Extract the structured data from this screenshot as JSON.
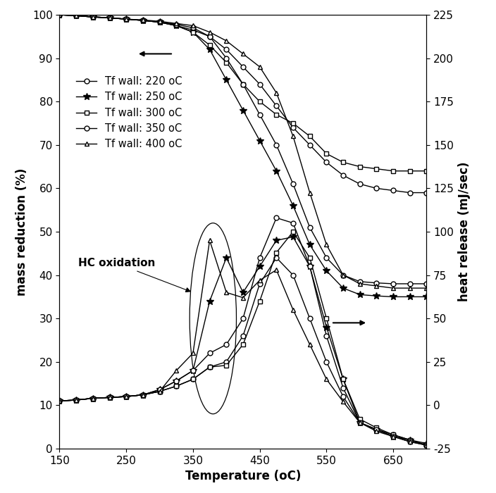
{
  "chart_data": {
    "type": "line",
    "x_label": "Temperature (oC)",
    "y_label": "mass reduction (%)",
    "y2_label": "heat release (mJ/sec)",
    "annotations": [
      "HC oxidation"
    ],
    "x": [
      150,
      175,
      200,
      225,
      250,
      275,
      300,
      325,
      350,
      375,
      400,
      425,
      450,
      475,
      500,
      525,
      550,
      575,
      600,
      625,
      650,
      675,
      700
    ],
    "xlim": [
      150,
      700
    ],
    "xticks": [
      150,
      250,
      350,
      450,
      550,
      650
    ],
    "ylim": [
      0,
      100
    ],
    "yticks": [
      0,
      10,
      20,
      30,
      40,
      50,
      60,
      70,
      80,
      90,
      100
    ],
    "y2lim": [
      -25,
      225
    ],
    "y2ticks": [
      -25,
      0,
      25,
      50,
      75,
      100,
      125,
      150,
      175,
      200,
      225
    ],
    "legend": "upper left",
    "series": [
      {
        "name": "Tf wall: 220 oC",
        "marker": "circle",
        "color": "#000000",
        "axis": "y",
        "values": [
          100,
          99.8,
          99.5,
          99.3,
          99,
          98.7,
          98.3,
          97.5,
          96.5,
          95,
          92,
          88,
          84,
          79,
          74,
          70,
          66,
          63,
          61,
          60,
          59.5,
          59,
          59
        ]
      },
      {
        "name": "Tf wall: 250 oC",
        "marker": "star",
        "color": "#000000",
        "axis": "y",
        "values": [
          100,
          99.8,
          99.5,
          99.3,
          99,
          98.7,
          98.3,
          97.5,
          96,
          92,
          85,
          78,
          71,
          64,
          56,
          47,
          41,
          37,
          35.5,
          35.2,
          35,
          35,
          35
        ]
      },
      {
        "name": "Tf wall: 300 oC",
        "marker": "square",
        "color": "#000000",
        "axis": "y",
        "values": [
          100,
          99.8,
          99.5,
          99.3,
          99,
          98.7,
          98.3,
          97.5,
          96,
          93,
          89,
          84,
          80,
          77,
          75,
          72,
          68,
          66,
          65,
          64.5,
          64,
          64,
          64
        ]
      },
      {
        "name": "Tf wall: 350 oC",
        "marker": "circle",
        "color": "#000000",
        "axis": "y",
        "values": [
          100,
          99.8,
          99.5,
          99.3,
          99,
          98.7,
          98.3,
          97.8,
          97,
          95,
          90,
          84,
          77,
          70,
          61,
          51,
          44,
          40,
          38.5,
          38.2,
          38,
          38,
          38
        ]
      },
      {
        "name": "Tf wall: 400 oC",
        "marker": "triangle",
        "color": "#000000",
        "axis": "y",
        "values": [
          100,
          99.8,
          99.5,
          99.3,
          99,
          98.8,
          98.5,
          98,
          97.5,
          96,
          94,
          91,
          88,
          82,
          72,
          59,
          47,
          40,
          38,
          37.5,
          37,
          37,
          37
        ]
      },
      {
        "marker": "circle",
        "color": "#000000",
        "axis": "y2",
        "values": [
          2.5,
          3,
          4,
          4.5,
          5,
          6,
          8,
          11,
          15,
          22,
          25,
          40,
          70,
          85,
          75,
          50,
          25,
          5,
          -10,
          -14,
          -17,
          -20,
          -23
        ]
      },
      {
        "marker": "star",
        "color": "#000000",
        "axis": "y2",
        "values": [
          2.5,
          3,
          4,
          4.5,
          5,
          6,
          9,
          14,
          20,
          60,
          85,
          65,
          80,
          95,
          97,
          80,
          45,
          15,
          -10,
          -14,
          -18,
          -20,
          -22
        ]
      },
      {
        "marker": "square",
        "color": "#000000",
        "axis": "y2",
        "values": [
          2.5,
          3,
          4,
          4.5,
          5,
          6,
          8,
          11,
          15,
          22,
          23,
          35,
          60,
          88,
          100,
          85,
          50,
          15,
          -8,
          -13,
          -17,
          -20,
          -23
        ]
      },
      {
        "marker": "circle",
        "color": "#000000",
        "axis": "y2",
        "values": [
          2.5,
          3,
          4,
          4.5,
          5,
          6,
          9,
          14,
          20,
          30,
          35,
          50,
          85,
          108,
          105,
          80,
          40,
          10,
          -10,
          -14,
          -18,
          -21,
          -23
        ]
      },
      {
        "marker": "triangle",
        "color": "#000000",
        "axis": "y2",
        "values": [
          2.5,
          3,
          4,
          4.5,
          5,
          6,
          8,
          20,
          30,
          95,
          65,
          62,
          72,
          78,
          55,
          35,
          15,
          2,
          -10,
          -15,
          -18,
          -21,
          -23
        ]
      }
    ]
  }
}
